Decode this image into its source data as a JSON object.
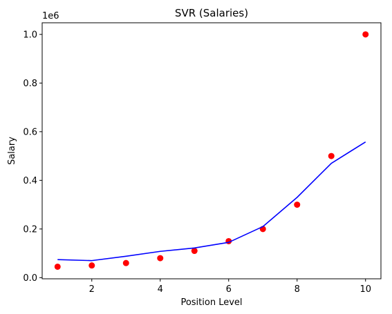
{
  "chart_data": {
    "type": "scatter",
    "title": "SVR (Salaries)",
    "xlabel": "Position Level",
    "ylabel": "Salary",
    "y_offset_label": "1e6",
    "xlim": [
      0.55,
      10.45
    ],
    "ylim": [
      -0.0048,
      1.0478
    ],
    "x_ticks": [
      2,
      4,
      6,
      8,
      10
    ],
    "x_tick_labels": [
      "2",
      "4",
      "6",
      "8",
      "10"
    ],
    "y_ticks": [
      0.0,
      0.2,
      0.4,
      0.6,
      0.8,
      1.0
    ],
    "y_tick_labels": [
      "0.0",
      "0.2",
      "0.4",
      "0.6",
      "0.8",
      "1.0"
    ],
    "grid": false,
    "series": [
      {
        "kind": "scatter",
        "color": "#ff0000",
        "x": [
          1,
          2,
          3,
          4,
          5,
          6,
          7,
          8,
          9,
          10
        ],
        "y": [
          0.045,
          0.05,
          0.06,
          0.08,
          0.11,
          0.15,
          0.2,
          0.3,
          0.5,
          1.0
        ]
      },
      {
        "kind": "line",
        "color": "#0000ff",
        "x": [
          1,
          2,
          3,
          4,
          5,
          6,
          7,
          8,
          9,
          10
        ],
        "y": [
          0.074,
          0.07,
          0.088,
          0.108,
          0.122,
          0.145,
          0.21,
          0.33,
          0.47,
          0.558
        ]
      }
    ]
  }
}
